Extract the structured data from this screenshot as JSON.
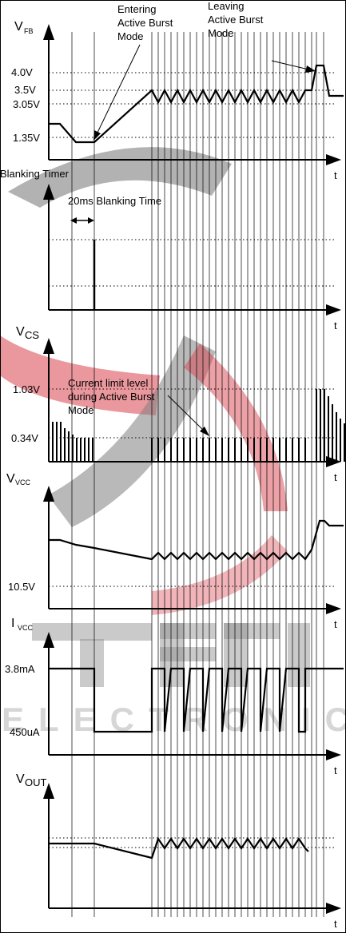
{
  "panels": {
    "vfb": {
      "label_main": "V",
      "label_sub": "FB",
      "ticks": [
        "4.0V",
        "3.5V",
        "3.05V",
        "1.35V"
      ],
      "annotation_entering": [
        "Entering",
        "Active Burst",
        "Mode"
      ],
      "annotation_leaving": [
        "Leaving",
        "Active Burst",
        "Mode"
      ]
    },
    "blanking": {
      "label": "Blanking Timer",
      "blanking_time": "20ms Blanking Time"
    },
    "vcs": {
      "label_main": "V",
      "label_sub": "CS",
      "ticks": [
        "1.03V",
        "0.34V"
      ],
      "annotation": [
        "Current limit level",
        "during Active Burst",
        "Mode"
      ]
    },
    "vvcc": {
      "label_main": "V",
      "label_sub": "VCC",
      "ticks": [
        "10.5V"
      ]
    },
    "ivcc": {
      "label_main": "I",
      "label_sub": "VCC",
      "ticks": [
        "3.8mA",
        "450uA"
      ]
    },
    "vout": {
      "label_main": "V",
      "label_sub": "OUT"
    }
  },
  "time_axis_label": "t",
  "watermark_text": "ELECTRONIC",
  "colors": {
    "line": "#000000",
    "grid": "#000000",
    "watermark_pink": "#d9434f",
    "watermark_gray": "#7f7f7f"
  }
}
